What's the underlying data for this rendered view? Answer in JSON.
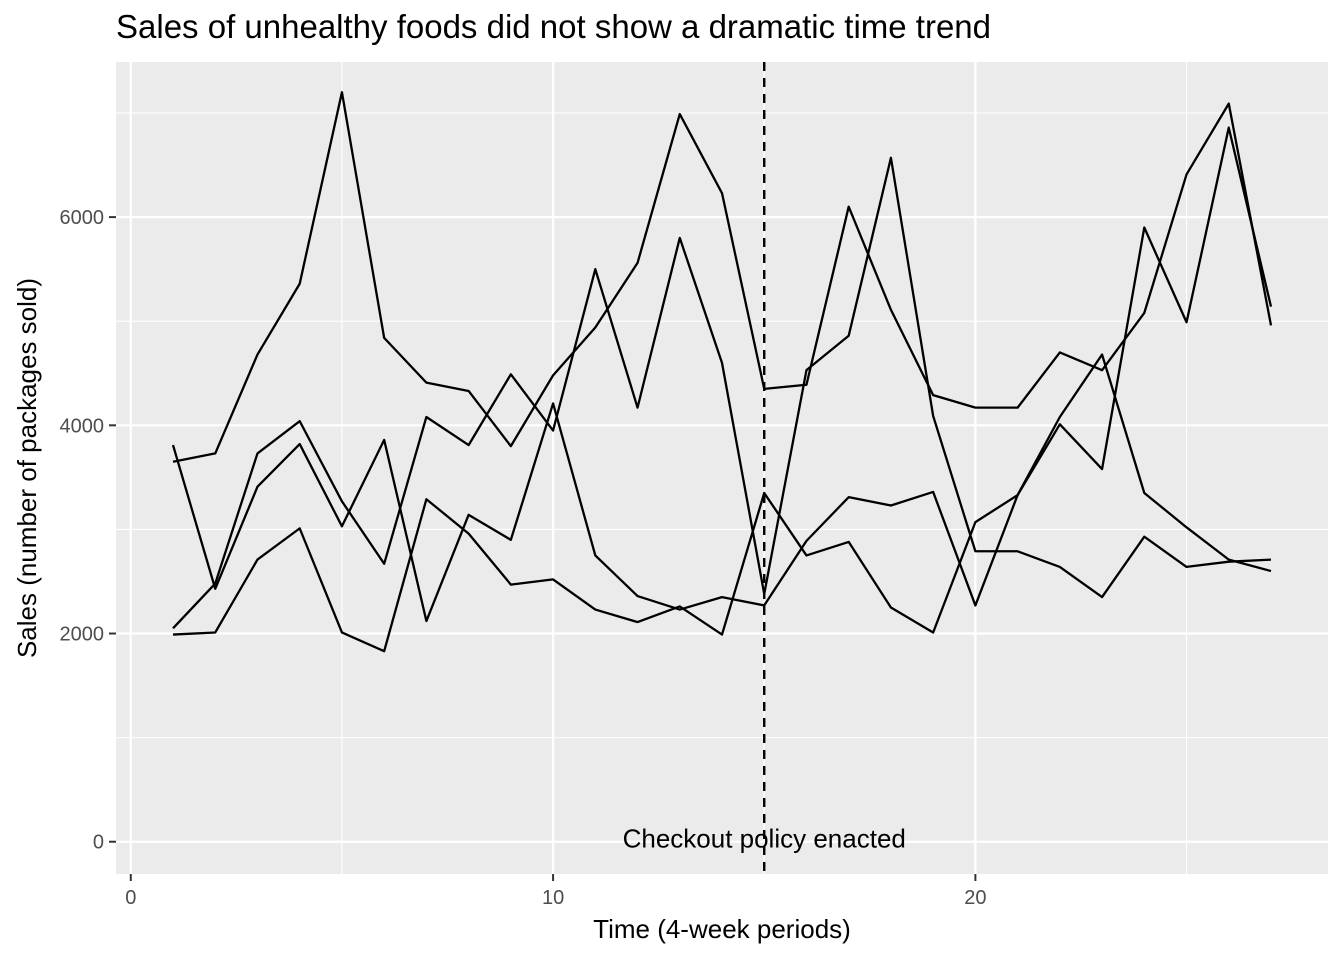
{
  "chart_data": {
    "type": "line",
    "title": "Sales of unhealthy foods did not show a dramatic time trend",
    "xlabel": "Time (4-week periods)",
    "ylabel": "Sales (number of packages sold)",
    "xlim": [
      -0.35,
      28.35
    ],
    "ylim": [
      -310,
      7490
    ],
    "x_ticks": [
      0,
      10,
      20
    ],
    "x_tick_labels": [
      "0",
      "10",
      "20"
    ],
    "y_ticks": [
      0,
      2000,
      4000,
      6000
    ],
    "y_tick_labels": [
      "0",
      "2000",
      "4000",
      "6000"
    ],
    "grid": true,
    "legend": "none",
    "colors": {
      "panel": "#ebebeb",
      "grid": "#ffffff",
      "line": "#000000"
    },
    "x": [
      1,
      2,
      3,
      4,
      5,
      6,
      7,
      8,
      9,
      10,
      11,
      12,
      13,
      14,
      15,
      16,
      17,
      18,
      19,
      20,
      21,
      22,
      23,
      24,
      25,
      26,
      27
    ],
    "series": [
      {
        "values": [
          3650,
          3730,
          4680,
          5360,
          7200,
          4840,
          4410,
          4330,
          3800,
          4480,
          4940,
          5560,
          6990,
          6230,
          4350,
          4390,
          6100,
          5110,
          4290,
          4170,
          4170,
          4700,
          4530,
          5080,
          6410,
          7090,
          4960
        ]
      },
      {
        "values": [
          2050,
          2480,
          3730,
          4040,
          3270,
          2670,
          4080,
          3810,
          4490,
          3950,
          5500,
          4170,
          5800,
          4600,
          2380,
          4530,
          4860,
          6570,
          4090,
          2790,
          2790,
          2640,
          2350,
          2930,
          2640,
          2690,
          2710
        ]
      },
      {
        "values": [
          3810,
          2430,
          3410,
          3820,
          3030,
          3860,
          2120,
          3140,
          2900,
          4210,
          2750,
          2360,
          2230,
          2350,
          2270,
          2890,
          3310,
          3230,
          3360,
          2270,
          3330,
          4010,
          3580,
          5900,
          4990,
          6860,
          5140
        ]
      },
      {
        "values": [
          1990,
          2010,
          2710,
          3010,
          2010,
          1830,
          3290,
          2960,
          2470,
          2520,
          2230,
          2110,
          2260,
          1990,
          3350,
          2750,
          2880,
          2250,
          2010,
          3070,
          3330,
          4080,
          4680,
          3350,
          3020,
          2710,
          2600
        ]
      }
    ],
    "reference_line": {
      "x": 15,
      "style": "dashed",
      "label": "Checkout policy enacted"
    }
  }
}
